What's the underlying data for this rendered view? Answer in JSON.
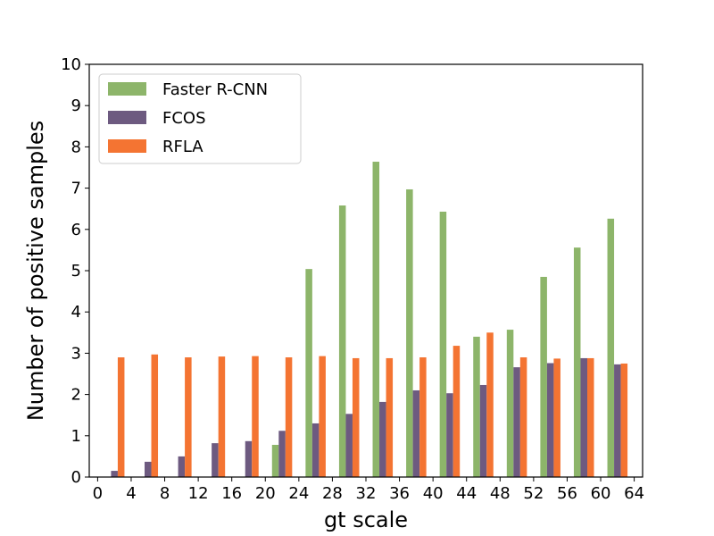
{
  "chart_data": {
    "type": "bar",
    "title": "",
    "xlabel": "gt scale",
    "ylabel": "Number of positive samples",
    "ylim": [
      0,
      10
    ],
    "yticks": [
      "0",
      "1",
      "2",
      "3",
      "4",
      "5",
      "6",
      "7",
      "8",
      "9",
      "10"
    ],
    "xticks": [
      "0",
      "4",
      "8",
      "12",
      "16",
      "20",
      "24",
      "28",
      "32",
      "36",
      "40",
      "44",
      "48",
      "52",
      "56",
      "60",
      "64"
    ],
    "grid": false,
    "legend_position": "top-left",
    "categories": [
      2,
      6,
      10,
      14,
      18,
      22,
      26,
      30,
      34,
      38,
      42,
      46,
      50,
      54,
      58,
      62
    ],
    "series": [
      {
        "name": "Faster R-CNN",
        "color": "#8db56a",
        "values": [
          0,
          0,
          0,
          0,
          0,
          0.78,
          5.04,
          6.58,
          7.64,
          6.97,
          6.43,
          3.4,
          3.57,
          4.85,
          5.56,
          6.26
        ]
      },
      {
        "name": "FCOS",
        "color": "#6d5a80",
        "values": [
          0.15,
          0.37,
          0.5,
          0.82,
          0.87,
          1.12,
          1.3,
          1.53,
          1.82,
          2.1,
          2.03,
          2.23,
          2.66,
          2.76,
          2.88,
          2.73
        ]
      },
      {
        "name": "RFLA",
        "color": "#f47432",
        "values": [
          2.9,
          2.97,
          2.9,
          2.92,
          2.93,
          2.9,
          2.93,
          2.88,
          2.88,
          2.9,
          3.18,
          3.5,
          2.9,
          2.87,
          2.88,
          2.75
        ]
      }
    ]
  }
}
